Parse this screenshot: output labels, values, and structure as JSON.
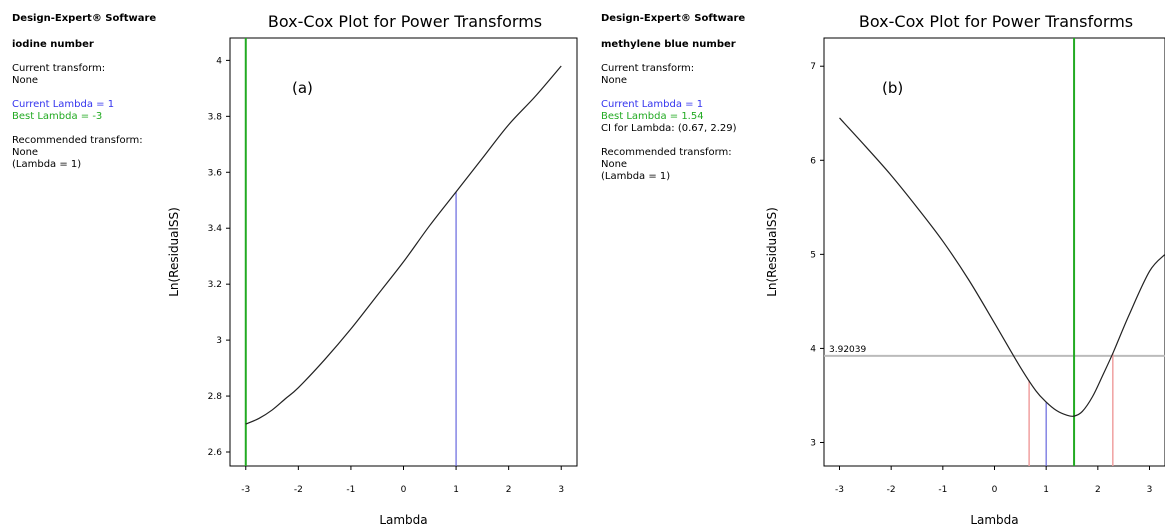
{
  "panels": [
    {
      "software": "Design-Expert® Software",
      "response": "iodine number",
      "current_transform_label": "Current transform:",
      "current_transform_value": "None",
      "current_lambda": "Current Lambda = 1",
      "best_lambda": "Best Lambda = -3",
      "ci": "",
      "recommended_label": "Recommended transform:",
      "recommended_value": "None",
      "recommended_lambda": "(Lambda = 1)"
    },
    {
      "software": "Design-Expert® Software",
      "response": "methylene blue number",
      "current_transform_label": "Current transform:",
      "current_transform_value": "None",
      "current_lambda": "Current Lambda = 1",
      "best_lambda": "Best Lambda = 1.54",
      "ci": "CI for Lambda: (0.67, 2.29)",
      "recommended_label": "Recommended transform:",
      "recommended_value": "None",
      "recommended_lambda": "(Lambda = 1)"
    }
  ],
  "colors": {
    "curve": "#222222",
    "current_lambda": "#6666dd",
    "best_lambda": "#22aa22",
    "ci_lines": "#f0a0a0",
    "threshold": "#bbbbbb"
  },
  "chart_data": [
    {
      "type": "line",
      "title": "Box-Cox Plot for Power Transforms",
      "panel_label": "(a)",
      "xlabel": "Lambda",
      "ylabel": "Ln(ResidualSS)",
      "xlim": [
        -3.3,
        3.3
      ],
      "ylim": [
        2.55,
        4.08
      ],
      "xticks": [
        -3,
        -2,
        -1,
        0,
        1,
        2,
        3
      ],
      "xtick_labels": [
        "-3",
        "-2",
        "-1",
        "0",
        "1",
        "2",
        "3"
      ],
      "yticks": [
        2.6,
        2.8,
        3,
        3.2,
        3.4,
        3.6,
        3.8,
        4
      ],
      "ytick_labels": [
        "2.6",
        "2.8",
        "3",
        "3.2",
        "3.4",
        "3.6",
        "3.8",
        "4"
      ],
      "series": [
        {
          "x": [
            -3,
            -2.75,
            -2.5,
            -2.25,
            -2,
            -1.5,
            -1,
            -0.5,
            0,
            0.5,
            1,
            1.5,
            2,
            2.5,
            3
          ],
          "values": [
            2.7,
            2.72,
            2.75,
            2.79,
            2.83,
            2.93,
            3.04,
            3.16,
            3.28,
            3.41,
            3.53,
            3.65,
            3.77,
            3.87,
            3.98
          ]
        }
      ],
      "current_lambda": 1,
      "best_lambda": -3,
      "ci": null,
      "threshold": null,
      "threshold_label": ""
    },
    {
      "type": "line",
      "title": "Box-Cox Plot for Power Transforms",
      "panel_label": "(b)",
      "xlabel": "Lambda",
      "ylabel": "Ln(ResidualSS)",
      "xlim": [
        -3.3,
        3.3
      ],
      "ylim": [
        2.75,
        7.3
      ],
      "xticks": [
        -3,
        -2,
        -1,
        0,
        1,
        2,
        3
      ],
      "xtick_labels": [
        "-3",
        "-2",
        "-1",
        "0",
        "1",
        "2",
        "3"
      ],
      "yticks": [
        3,
        4,
        5,
        6,
        7
      ],
      "ytick_labels": [
        "3",
        "4",
        "5",
        "6",
        "7"
      ],
      "series": [
        {
          "x": [
            -3,
            -2.5,
            -2,
            -1.5,
            -1,
            -0.5,
            0,
            0.5,
            0.8,
            1,
            1.2,
            1.4,
            1.54,
            1.7,
            1.9,
            2.1,
            2.3,
            2.6,
            3,
            3.3
          ],
          "values": [
            6.45,
            6.15,
            5.84,
            5.5,
            5.14,
            4.73,
            4.27,
            3.8,
            3.55,
            3.43,
            3.34,
            3.29,
            3.28,
            3.33,
            3.49,
            3.72,
            3.96,
            4.35,
            4.82,
            5.0
          ]
        }
      ],
      "current_lambda": 1,
      "best_lambda": 1.54,
      "ci": [
        0.67,
        2.29
      ],
      "threshold": 3.92039,
      "threshold_label": "3.92039"
    }
  ]
}
